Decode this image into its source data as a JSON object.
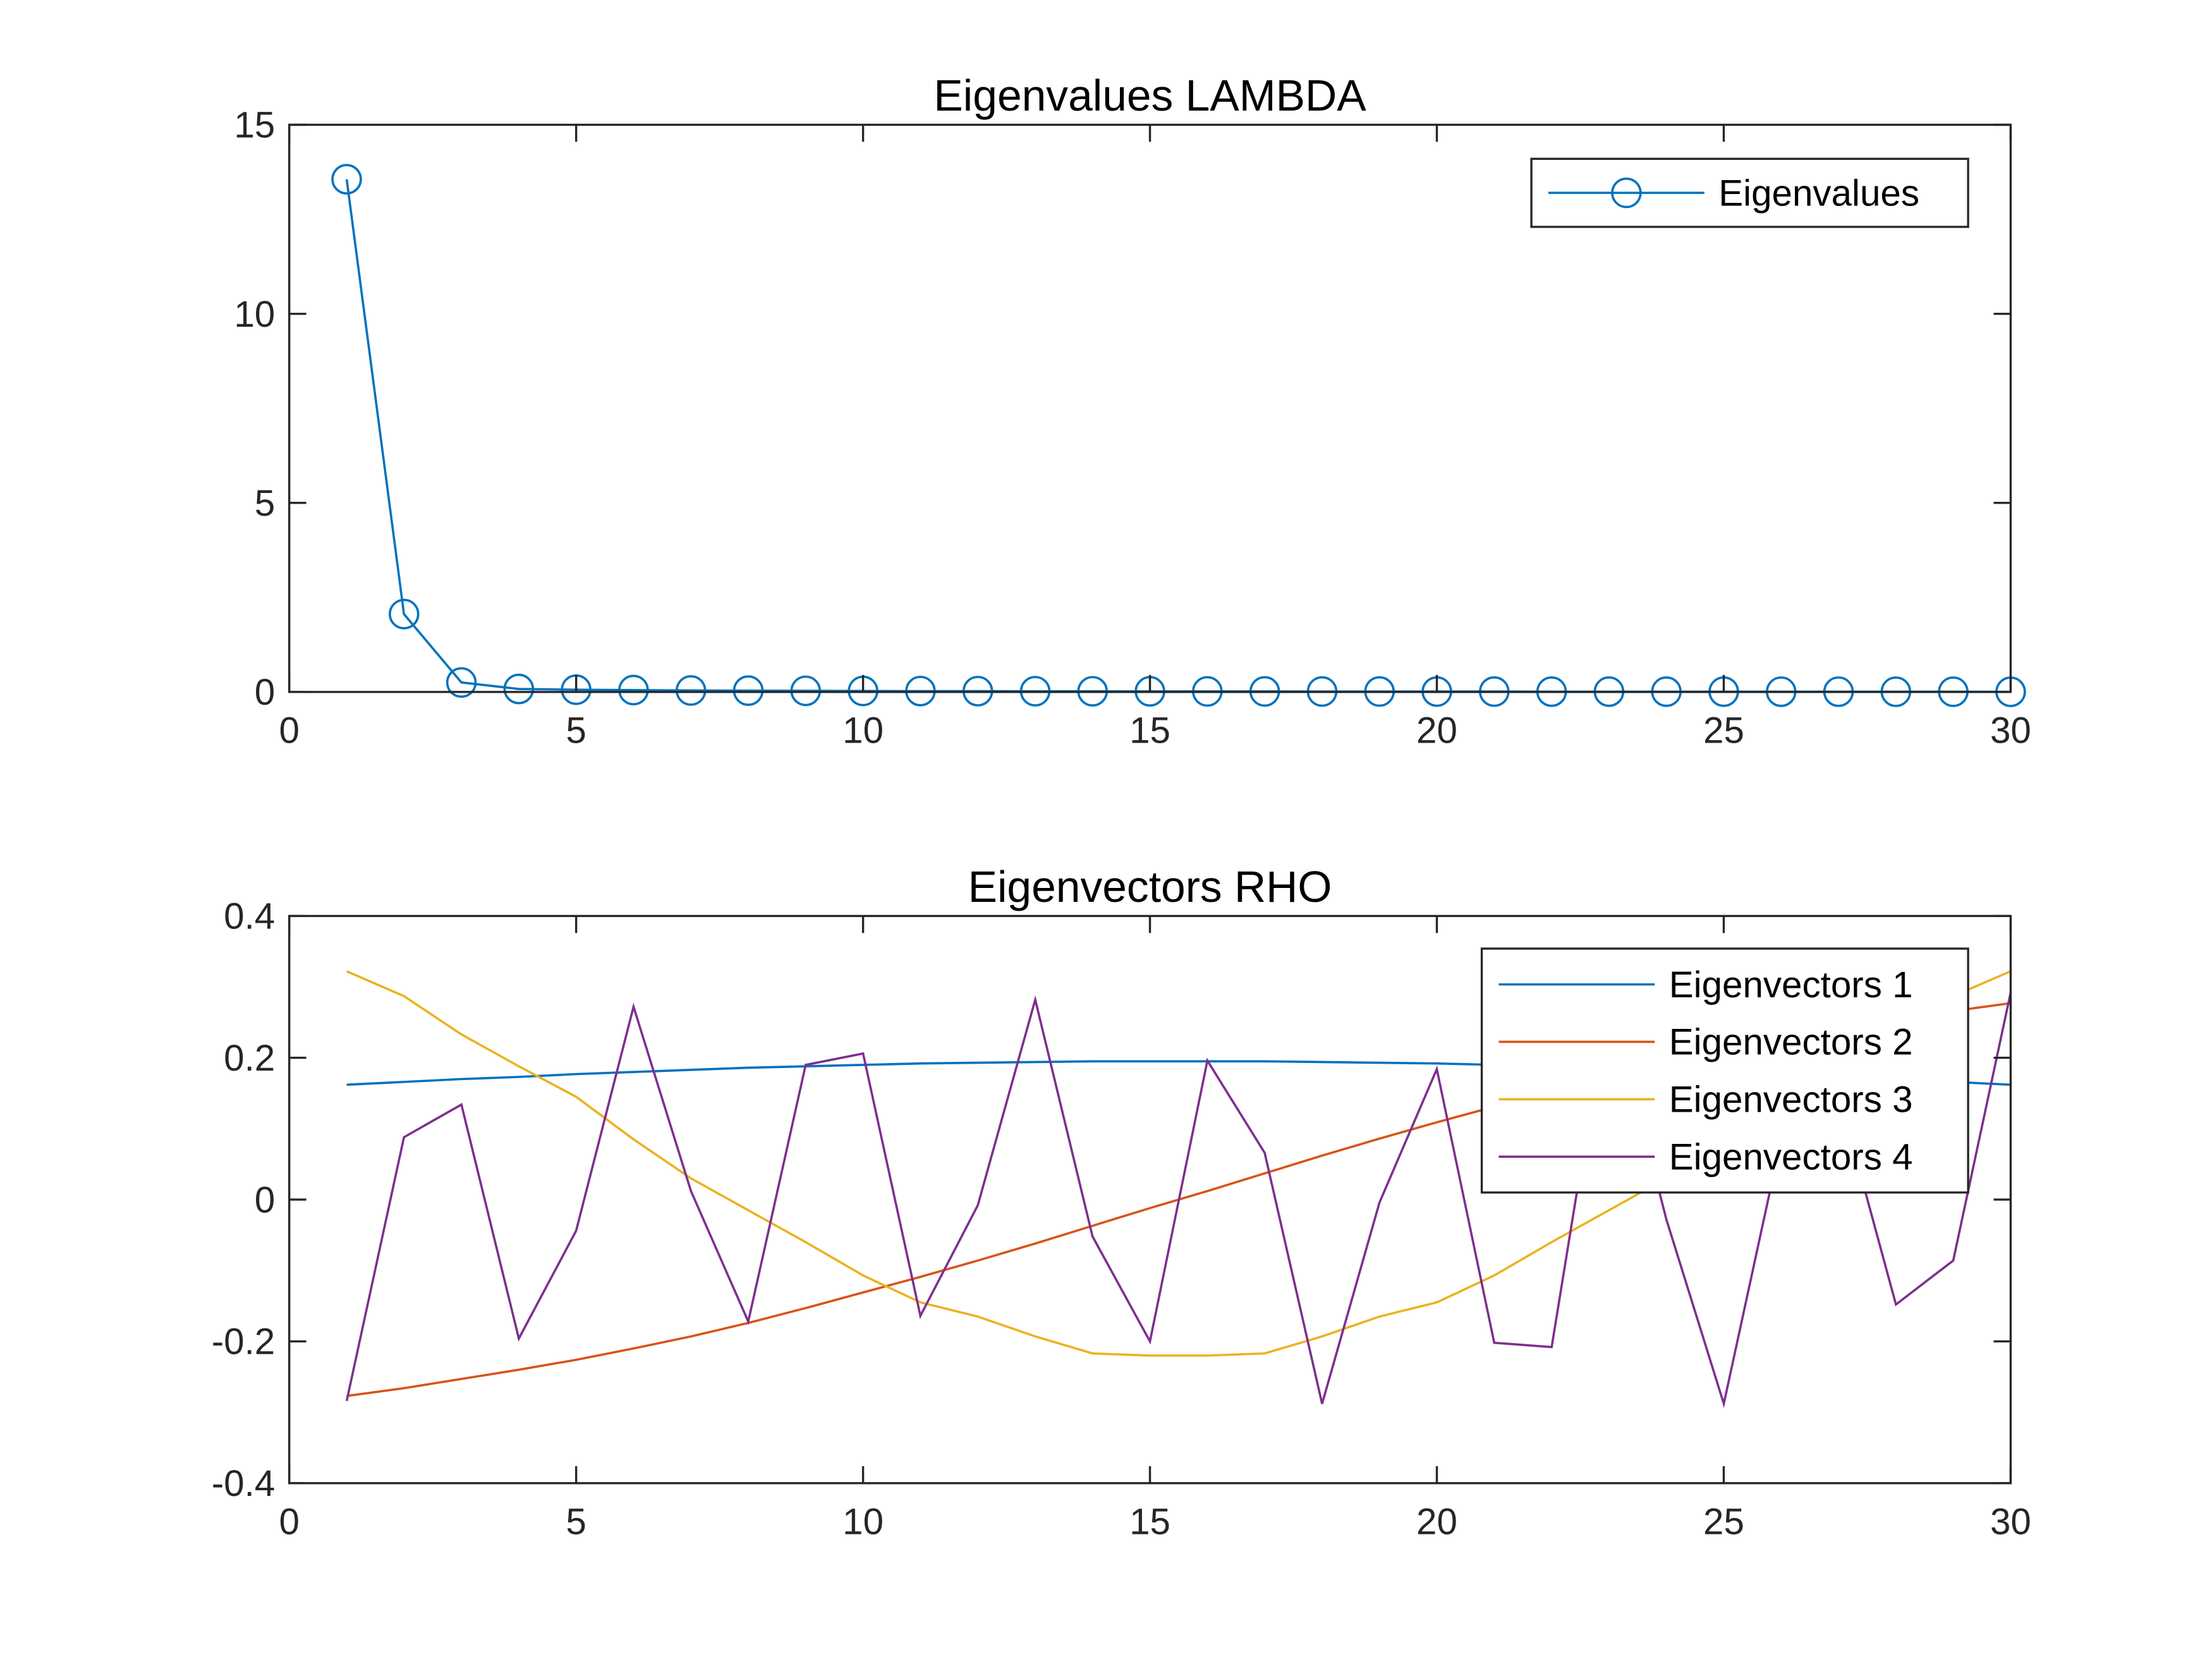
{
  "chart_data": [
    {
      "type": "line",
      "title": "Eigenvalues LAMBDA",
      "xlim": [
        0,
        30
      ],
      "ylim": [
        0,
        15
      ],
      "xticks": [
        0,
        5,
        10,
        15,
        20,
        25,
        30
      ],
      "yticks": [
        0,
        5,
        10,
        15
      ],
      "grid": false,
      "legend_placement": "top-right",
      "x": [
        1,
        2,
        3,
        4,
        5,
        6,
        7,
        8,
        9,
        10,
        11,
        12,
        13,
        14,
        15,
        16,
        17,
        18,
        19,
        20,
        21,
        22,
        23,
        24,
        25,
        26,
        27,
        28,
        29,
        30
      ],
      "series": [
        {
          "name": "Eigenvalues",
          "color": "#0072BD",
          "marker": "circle",
          "values": [
            13.56,
            2.06,
            0.25,
            0.08,
            0.06,
            0.05,
            0.04,
            0.035,
            0.03,
            0.027,
            0.024,
            0.022,
            0.02,
            0.018,
            0.016,
            0.015,
            0.014,
            0.013,
            0.012,
            0.011,
            0.01,
            0.009,
            0.009,
            0.008,
            0.008,
            0.007,
            0.007,
            0.006,
            0.006,
            0.005
          ]
        }
      ]
    },
    {
      "type": "line",
      "title": "Eigenvectors RHO",
      "xlim": [
        0,
        30
      ],
      "ylim": [
        -0.4,
        0.4
      ],
      "xticks": [
        0,
        5,
        10,
        15,
        20,
        25,
        30
      ],
      "yticks": [
        -0.4,
        -0.2,
        0,
        0.2,
        0.4
      ],
      "grid": false,
      "legend_placement": "top-right",
      "x": [
        1,
        2,
        3,
        4,
        5,
        6,
        7,
        8,
        9,
        10,
        11,
        12,
        13,
        14,
        15,
        16,
        17,
        18,
        19,
        20,
        21,
        22,
        23,
        24,
        25,
        26,
        27,
        28,
        29,
        30
      ],
      "series": [
        {
          "name": "Eigenvectors 1",
          "color": "#0072BD",
          "values": [
            0.162,
            0.166,
            0.17,
            0.173,
            0.177,
            0.18,
            0.183,
            0.186,
            0.188,
            0.19,
            0.192,
            0.193,
            0.194,
            0.195,
            0.195,
            0.195,
            0.195,
            0.194,
            0.193,
            0.192,
            0.19,
            0.188,
            0.186,
            0.183,
            0.18,
            0.177,
            0.173,
            0.17,
            0.166,
            0.162
          ]
        },
        {
          "name": "Eigenvectors 2",
          "color": "#D95319",
          "values": [
            -0.277,
            -0.266,
            -0.253,
            -0.24,
            -0.226,
            -0.21,
            -0.193,
            -0.174,
            -0.153,
            -0.131,
            -0.109,
            -0.086,
            -0.062,
            -0.037,
            -0.012,
            0.012,
            0.037,
            0.062,
            0.086,
            0.109,
            0.131,
            0.153,
            0.174,
            0.193,
            0.21,
            0.226,
            0.24,
            0.253,
            0.266,
            0.277
          ]
        },
        {
          "name": "Eigenvectors 3",
          "color": "#EDB120",
          "values": [
            0.322,
            0.287,
            0.233,
            0.188,
            0.145,
            0.085,
            0.03,
            -0.015,
            -0.06,
            -0.107,
            -0.145,
            -0.165,
            -0.193,
            -0.217,
            -0.22,
            -0.22,
            -0.217,
            -0.193,
            -0.165,
            -0.145,
            -0.107,
            -0.06,
            -0.015,
            0.03,
            0.085,
            0.145,
            0.188,
            0.233,
            0.287,
            0.322
          ]
        },
        {
          "name": "Eigenvectors 4",
          "color": "#7E2F8E",
          "values": [
            -0.284,
            0.088,
            0.134,
            -0.196,
            -0.044,
            0.272,
            0.012,
            -0.172,
            0.19,
            0.206,
            -0.164,
            -0.008,
            0.282,
            -0.052,
            -0.2,
            0.196,
            0.066,
            -0.288,
            -0.004,
            0.184,
            -0.202,
            -0.208,
            0.288,
            -0.028,
            -0.288,
            0.084,
            0.15,
            -0.148,
            -0.086,
            0.292
          ]
        }
      ]
    }
  ]
}
